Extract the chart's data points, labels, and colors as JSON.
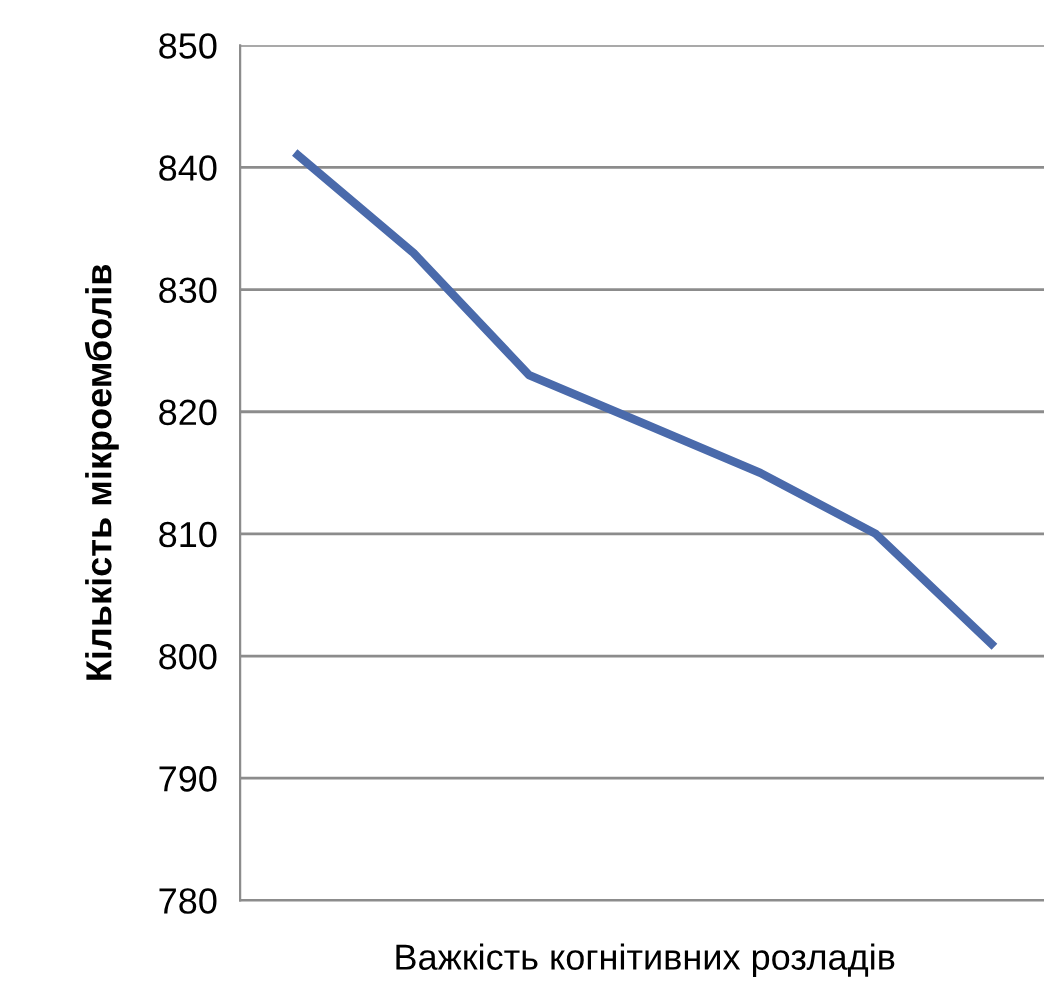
{
  "chart_data": {
    "type": "line",
    "xlabel": "Важкість когнітивних розладів",
    "ylabel": "Кількість мікроемболів",
    "categories": [
      null,
      null,
      null,
      null,
      null,
      null,
      null
    ],
    "series": [
      {
        "color": "#4a6aab",
        "values": [
          841,
          833,
          823,
          819,
          815,
          810,
          801
        ]
      }
    ],
    "ylim": [
      780,
      850
    ],
    "yticks": [
      780,
      790,
      800,
      810,
      820,
      830,
      840,
      850
    ],
    "grid": "y",
    "marker": "none",
    "line_style": "solid"
  }
}
